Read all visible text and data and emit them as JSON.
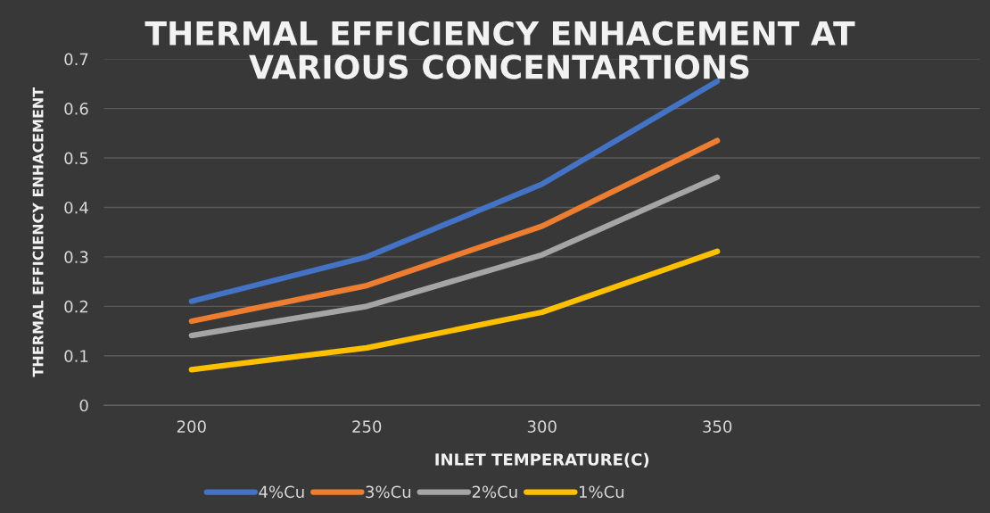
{
  "chart_data": {
    "type": "line",
    "title": "THERMAL EFFICIENCY ENHACEMENT AT\nVARIOUS CONCENTARTIONS",
    "xlabel": "INLET TEMPERATURE(C)",
    "ylabel": "THERMAL EFFICIENCY ENHACEMENT",
    "categories": [
      "200",
      "250",
      "300",
      "350",
      null
    ],
    "series": [
      {
        "name": "4%Cu",
        "color": "#4472c4",
        "values": [
          0.21,
          0.3,
          0.447,
          0.655,
          null
        ]
      },
      {
        "name": "3%Cu",
        "color": "#ed7d31",
        "values": [
          0.17,
          0.242,
          0.362,
          0.535,
          null
        ]
      },
      {
        "name": "2%Cu",
        "color": "#a5a5a5",
        "values": [
          0.141,
          0.2,
          0.304,
          0.461,
          null
        ]
      },
      {
        "name": "1%Cu",
        "color": "#ffc000",
        "values": [
          0.072,
          0.116,
          0.188,
          0.311,
          null
        ]
      }
    ],
    "ylim": [
      0,
      0.7
    ],
    "yticks": [
      0,
      0.1,
      0.2,
      0.3,
      0.4,
      0.5,
      0.6,
      0.7
    ],
    "grid": "y",
    "legend": "bottom",
    "marker": "none",
    "line_style": "solid"
  }
}
